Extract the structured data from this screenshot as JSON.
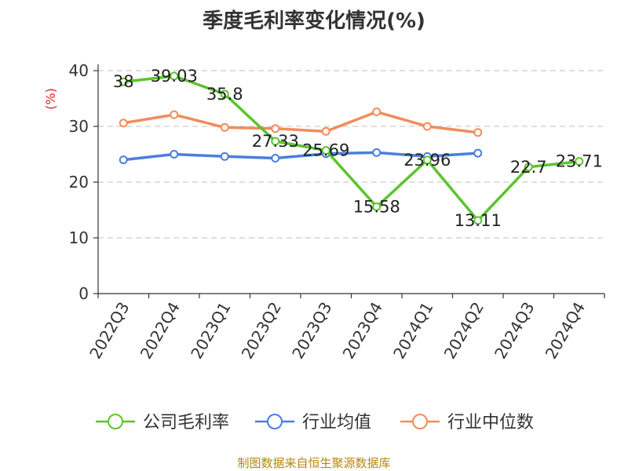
{
  "source_note": "制图数据来自恒生聚源数据库",
  "chart_data": {
    "type": "line",
    "title": "季度毛利率变化情况(%)",
    "ylabel": "(%)",
    "ylim": [
      0,
      40
    ],
    "yticks": [
      0,
      10,
      20,
      30,
      40
    ],
    "grid": true,
    "legend_position": "bottom",
    "categories": [
      "2022Q3",
      "2022Q4",
      "2023Q1",
      "2023Q2",
      "2023Q3",
      "2023Q4",
      "2024Q1",
      "2024Q2",
      "2024Q3",
      "2024Q4"
    ],
    "series": [
      {
        "name": "公司毛利率",
        "color": "#5cc42e",
        "values": [
          38,
          39.03,
          35.8,
          27.33,
          25.69,
          15.58,
          23.96,
          13.11,
          22.7,
          23.71
        ],
        "labels": [
          "38",
          "39.03",
          "35.8",
          "27.33",
          "25.69",
          "15.58",
          "23.96",
          "13.11",
          "22.7",
          "23.71"
        ]
      },
      {
        "name": "行业均值",
        "color": "#4a7fdc",
        "values": [
          24.0,
          25.0,
          24.6,
          24.3,
          25.1,
          25.3,
          24.6,
          25.2,
          null,
          null
        ]
      },
      {
        "name": "行业中位数",
        "color": "#f28c5a",
        "values": [
          30.6,
          32.1,
          29.8,
          29.6,
          29.1,
          32.6,
          30.0,
          28.9,
          null,
          null
        ]
      }
    ]
  }
}
